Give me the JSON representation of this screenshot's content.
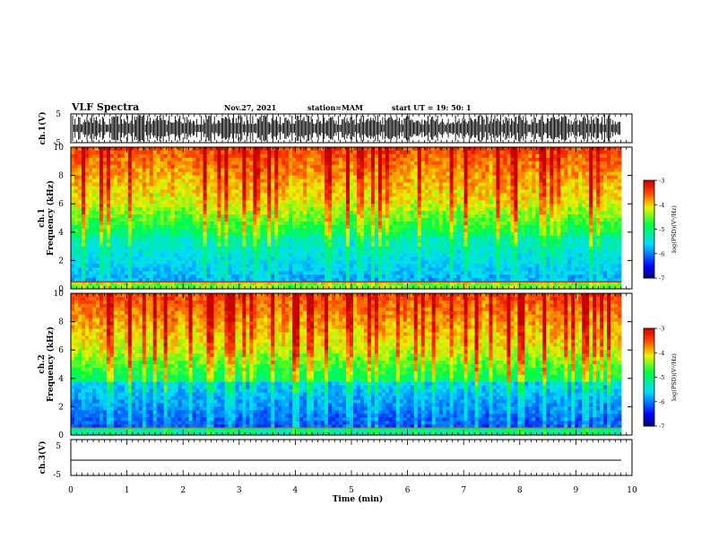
{
  "header": {
    "title": "VLF Spectra",
    "date": "Nov.27, 2021",
    "station": "station=MAM",
    "start_ut": "start UT =  19: 50: 1"
  },
  "chart_data": [
    {
      "type": "line",
      "ylabel": "ch.1(V)",
      "ylim": [
        -5,
        5
      ],
      "yticks": [
        "5",
        "-5"
      ],
      "xlim": [
        0,
        10
      ],
      "note": "waveform trace, dense oscillation"
    },
    {
      "type": "heatmap",
      "ylabel": "Frequency (kHz)",
      "ylabel_top": "ch.1",
      "ylim": [
        0,
        10
      ],
      "yticks": [
        "0",
        "2",
        "4",
        "6",
        "8",
        "10"
      ],
      "xlim": [
        0,
        10
      ],
      "colorbar": {
        "label": "log(PSD)(V²/Hz)",
        "range": [
          -7,
          -3
        ],
        "ticks": [
          "-3",
          "-4",
          "-5",
          "-6",
          "-7"
        ]
      }
    },
    {
      "type": "heatmap",
      "ylabel": "Frequency (kHz)",
      "ylabel_top": "ch.2",
      "ylim": [
        0,
        10
      ],
      "yticks": [
        "0",
        "2",
        "4",
        "6",
        "8",
        "10"
      ],
      "xlim": [
        0,
        10
      ],
      "colorbar": {
        "label": "log(PSD)(V²/Hz)",
        "range": [
          -7,
          -3
        ],
        "ticks": [
          "-3",
          "-4",
          "-5",
          "-6",
          "-7"
        ]
      }
    },
    {
      "type": "line",
      "ylabel": "ch.3(V)",
      "ylim": [
        -5,
        5
      ],
      "yticks": [
        "5",
        "-5"
      ],
      "xlim": [
        0,
        10
      ],
      "note": "flat trace near -1 V"
    }
  ],
  "x_axis": {
    "label": "Time (min)",
    "ticks": [
      "0",
      "1",
      "2",
      "3",
      "4",
      "5",
      "6",
      "7",
      "8",
      "9",
      "10"
    ]
  }
}
